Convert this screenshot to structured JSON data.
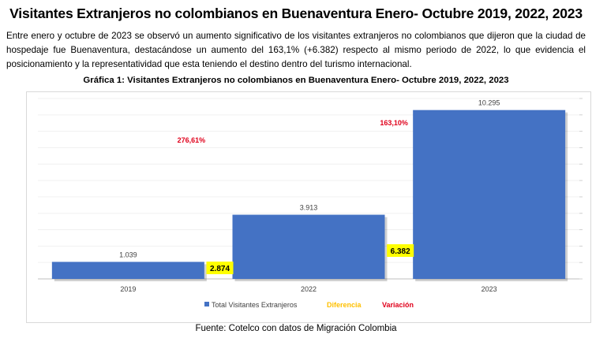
{
  "page": {
    "title": "Visitantes Extranjeros no colombianos en Buenaventura Enero- Octubre 2019, 2022, 2023",
    "intro": "Entre enero y octubre de 2023 se observó un aumento significativo de los visitantes extranjeros no colombianos que dijeron que la ciudad de hospedaje fue Buenaventura, destacándose un aumento del 163,1% (+6.382) respecto al mismo periodo de 2022, lo que evidencia el posicionamiento y la representatividad que esta teniendo el destino dentro del turismo internacional.",
    "source": "Fuente: Cotelco con datos de Migración Colombia"
  },
  "chart_data": {
    "type": "bar",
    "title": "Gráfica 1: Visitantes Extranjeros no colombianos en Buenaventura Enero- Octubre 2019, 2022, 2023",
    "categories": [
      "2019",
      "2022",
      "2023"
    ],
    "ylim": [
      0,
      11000
    ],
    "grid": true,
    "legend_position": "bottom",
    "series": [
      {
        "name": "Total Visitantes Extranjeros",
        "values": [
          1039,
          3913,
          10295
        ],
        "labels": [
          "1.039",
          "3.913",
          "10.295"
        ],
        "color": "#4472c4"
      }
    ],
    "legend": [
      {
        "name": "Total Visitantes Extranjeros",
        "color": "#4472c4"
      },
      {
        "name": "Diferencia",
        "color": "#ffc000"
      },
      {
        "name": "Variación",
        "color": "#e0001b"
      }
    ],
    "annotations": {
      "diferencia": [
        {
          "between": [
            "2019",
            "2022"
          ],
          "value": 2874,
          "label": "2.874",
          "color": "#ffff00"
        },
        {
          "between": [
            "2022",
            "2023"
          ],
          "value": 6382,
          "label": "6.382",
          "color": "#ffff00"
        }
      ],
      "variacion": [
        {
          "between": [
            "2019",
            "2022"
          ],
          "label": "276,61%",
          "color": "#e0001b"
        },
        {
          "between": [
            "2022",
            "2023"
          ],
          "label": "163,10%",
          "color": "#e0001b"
        }
      ]
    }
  }
}
